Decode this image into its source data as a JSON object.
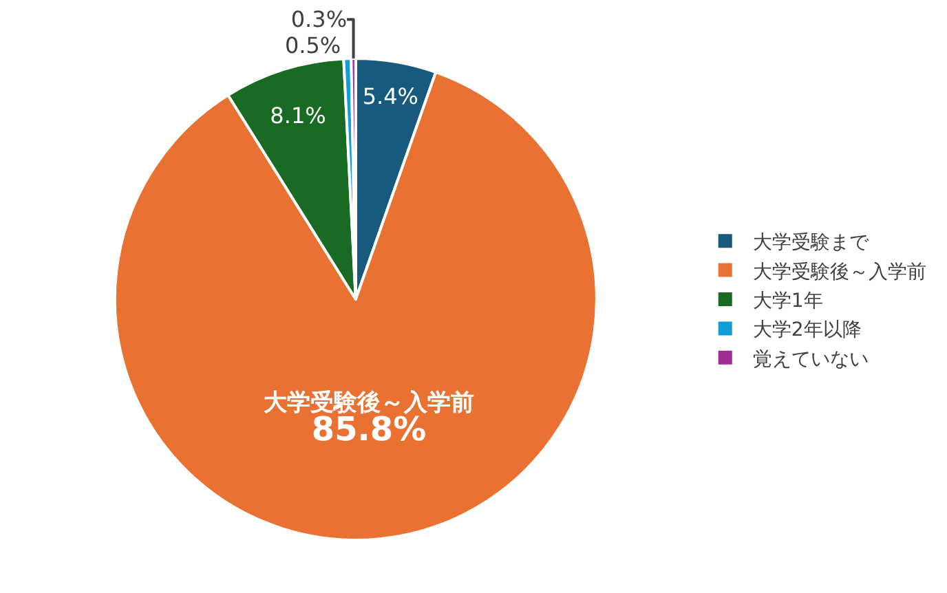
{
  "chart_data": {
    "type": "pie",
    "categories": [
      "大学受験まで",
      "大学受験後～入学前",
      "大学1年",
      "大学2年以降",
      "覚えていない"
    ],
    "values": [
      5.4,
      85.8,
      8.1,
      0.5,
      0.3
    ],
    "colors": [
      "#185a7d",
      "#e97132",
      "#196b24",
      "#0f9ed5",
      "#a02b93"
    ],
    "value_labels": [
      "5.4%",
      "大学受験後～入学前\n85.8%",
      "8.1%",
      "0.5%",
      "0.3%"
    ],
    "legend": "right"
  }
}
